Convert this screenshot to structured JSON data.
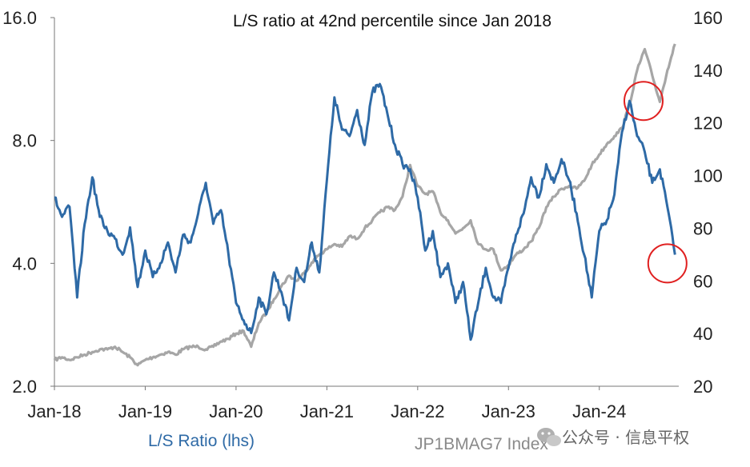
{
  "chart_data": {
    "type": "line",
    "title": "L/S ratio  at 42nd percentile  since Jan 2018",
    "x_ticks": [
      "Jan-18",
      "Jan-19",
      "Jan-20",
      "Jan-21",
      "Jan-22",
      "Jan-23",
      "Jan-24"
    ],
    "x_range": [
      "2018-01",
      "2024-11"
    ],
    "y_left": {
      "scale": "log",
      "range": [
        2.0,
        16.0
      ],
      "ticks": [
        "2.0",
        "4.0",
        "8.0",
        "16.0"
      ]
    },
    "y_right": {
      "scale": "linear",
      "range": [
        20,
        160
      ],
      "ticks": [
        "20",
        "40",
        "60",
        "80",
        "100",
        "120",
        "140",
        "160"
      ]
    },
    "grid": false,
    "series": [
      {
        "name": "L/S Ratio (lhs)",
        "axis": "left",
        "color": "#2e6aa6",
        "x": [
          "2018-01",
          "2018-02",
          "2018-03",
          "2018-04",
          "2018-05",
          "2018-06",
          "2018-07",
          "2018-08",
          "2018-09",
          "2018-10",
          "2018-11",
          "2018-12",
          "2019-01",
          "2019-02",
          "2019-03",
          "2019-04",
          "2019-05",
          "2019-06",
          "2019-07",
          "2019-08",
          "2019-09",
          "2019-10",
          "2019-11",
          "2019-12",
          "2020-01",
          "2020-02",
          "2020-03",
          "2020-04",
          "2020-05",
          "2020-06",
          "2020-07",
          "2020-08",
          "2020-09",
          "2020-10",
          "2020-11",
          "2020-12",
          "2021-01",
          "2021-02",
          "2021-03",
          "2021-04",
          "2021-05",
          "2021-06",
          "2021-07",
          "2021-08",
          "2021-09",
          "2021-10",
          "2021-11",
          "2021-12",
          "2022-01",
          "2022-02",
          "2022-03",
          "2022-04",
          "2022-05",
          "2022-06",
          "2022-07",
          "2022-08",
          "2022-09",
          "2022-10",
          "2022-11",
          "2022-12",
          "2023-01",
          "2023-02",
          "2023-03",
          "2023-04",
          "2023-05",
          "2023-06",
          "2023-07",
          "2023-08",
          "2023-09",
          "2023-10",
          "2023-11",
          "2023-12",
          "2024-01",
          "2024-02",
          "2024-03",
          "2024-04",
          "2024-05",
          "2024-06",
          "2024-07",
          "2024-08",
          "2024-09",
          "2024-10",
          "2024-11"
        ],
        "values": [
          5.8,
          5.2,
          5.5,
          3.3,
          5.0,
          6.5,
          5.2,
          4.8,
          4.6,
          4.2,
          4.9,
          3.5,
          4.3,
          3.7,
          4.0,
          4.5,
          3.8,
          4.7,
          4.5,
          5.3,
          6.3,
          5.0,
          5.4,
          4.2,
          3.2,
          2.9,
          2.7,
          3.3,
          3.0,
          3.8,
          3.4,
          2.9,
          3.9,
          3.6,
          4.5,
          3.8,
          6.4,
          10.2,
          8.5,
          8.2,
          9.5,
          7.8,
          10.5,
          11.0,
          9.3,
          7.8,
          7.0,
          6.8,
          5.8,
          4.3,
          4.8,
          3.7,
          4.0,
          3.2,
          3.6,
          2.6,
          3.2,
          3.9,
          3.3,
          3.2,
          3.9,
          4.7,
          5.3,
          6.5,
          5.8,
          7.0,
          6.3,
          7.2,
          6.4,
          5.3,
          4.2,
          3.3,
          4.8,
          5.1,
          5.9,
          8.4,
          10.0,
          8.2,
          7.5,
          6.3,
          6.8,
          5.5,
          4.2
        ]
      },
      {
        "name": "JP1BMAG7  Index",
        "axis": "right",
        "color": "#a6a6a6",
        "x": [
          "2018-01",
          "2018-02",
          "2018-03",
          "2018-04",
          "2018-05",
          "2018-06",
          "2018-07",
          "2018-08",
          "2018-09",
          "2018-10",
          "2018-11",
          "2018-12",
          "2019-01",
          "2019-02",
          "2019-03",
          "2019-04",
          "2019-05",
          "2019-06",
          "2019-07",
          "2019-08",
          "2019-09",
          "2019-10",
          "2019-11",
          "2019-12",
          "2020-01",
          "2020-02",
          "2020-03",
          "2020-04",
          "2020-05",
          "2020-06",
          "2020-07",
          "2020-08",
          "2020-09",
          "2020-10",
          "2020-11",
          "2020-12",
          "2021-01",
          "2021-02",
          "2021-03",
          "2021-04",
          "2021-05",
          "2021-06",
          "2021-07",
          "2021-08",
          "2021-09",
          "2021-10",
          "2021-11",
          "2021-12",
          "2022-01",
          "2022-02",
          "2022-03",
          "2022-04",
          "2022-05",
          "2022-06",
          "2022-07",
          "2022-08",
          "2022-09",
          "2022-10",
          "2022-11",
          "2022-12",
          "2023-01",
          "2023-02",
          "2023-03",
          "2023-04",
          "2023-05",
          "2023-06",
          "2023-07",
          "2023-08",
          "2023-09",
          "2023-10",
          "2023-11",
          "2023-12",
          "2024-01",
          "2024-02",
          "2024-03",
          "2024-04",
          "2024-05",
          "2024-06",
          "2024-07",
          "2024-08",
          "2024-09",
          "2024-10",
          "2024-11"
        ],
        "values": [
          30,
          31,
          30,
          31,
          32,
          33,
          34,
          34,
          35,
          33,
          31,
          28,
          30,
          31,
          32,
          33,
          32,
          34,
          35,
          35,
          34,
          35,
          37,
          38,
          40,
          41,
          35,
          44,
          48,
          53,
          58,
          62,
          60,
          63,
          67,
          70,
          72,
          74,
          73,
          77,
          76,
          80,
          83,
          86,
          88,
          87,
          92,
          104,
          96,
          93,
          94,
          86,
          83,
          78,
          80,
          83,
          74,
          72,
          72,
          64,
          66,
          70,
          72,
          75,
          80,
          88,
          92,
          95,
          96,
          95,
          98,
          104,
          108,
          112,
          115,
          118,
          127,
          140,
          148,
          138,
          128,
          140,
          150
        ]
      }
    ],
    "annotations": [
      {
        "type": "circle",
        "color": "#e02020",
        "x": "2024-06",
        "axis": "left",
        "y": 10.0
      },
      {
        "type": "circle",
        "color": "#e02020",
        "x": "2024-10",
        "axis": "left",
        "y": 4.0
      }
    ]
  },
  "legend": {
    "lhs_label": "L/S Ratio (lhs)",
    "index_label": "JP1BMAG7  Index",
    "lhs_color": "#2e6aa6",
    "index_color": "#a6a6a6"
  },
  "watermark": {
    "icon": "wechat-icon",
    "text": "公众号 · 信息平权"
  }
}
